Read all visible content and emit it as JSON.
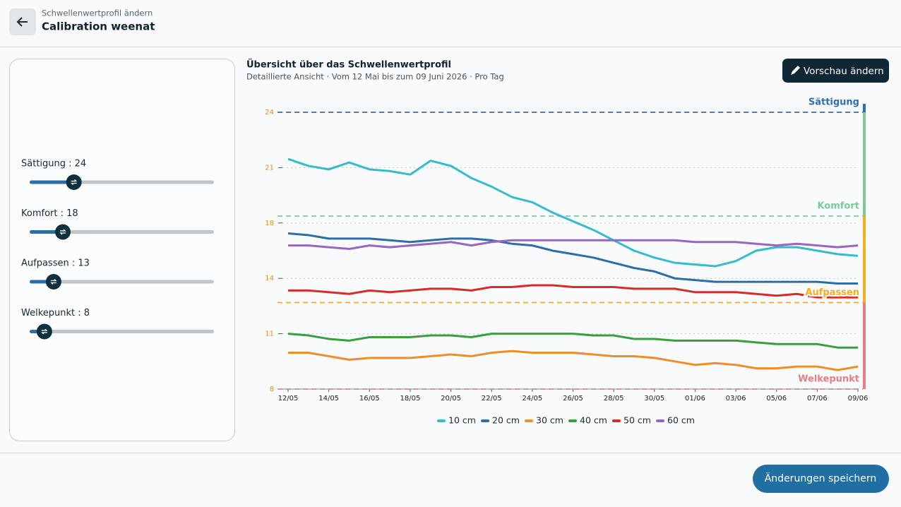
{
  "header": {
    "subtitle": "Schwellenwertprofil ändern",
    "title": "Calibration weenat"
  },
  "sliders": {
    "range": [
      0,
      100
    ],
    "items": [
      {
        "label": "Sättigung : 24",
        "value": 24
      },
      {
        "label": "Komfort : 18",
        "value": 18
      },
      {
        "label": "Aufpassen : 13",
        "value": 13
      },
      {
        "label": "Welkepunkt : 8",
        "value": 8
      }
    ]
  },
  "chart_data": {
    "type": "line",
    "title": "Übersicht über das Schwellenwertprofil",
    "subtitle": "Detaillierte Ansicht · Vom 12 Mai bis zum 09 Juni 2026 · Pro Tag",
    "edit_button": "Vorschau ändern",
    "x": [
      "12/05",
      null,
      "14/05",
      null,
      "16/05",
      null,
      "18/05",
      null,
      "20/05",
      null,
      "22/05",
      null,
      "24/05",
      null,
      "26/05",
      null,
      "28/05",
      null,
      "30/05",
      null,
      "01/06",
      null,
      "03/06",
      null,
      "05/06",
      null,
      "07/06",
      null,
      "09/06"
    ],
    "ylim": [
      8,
      24
    ],
    "yticks": [
      8,
      {
        "value": 11.2,
        "label": "11"
      },
      {
        "value": 14.4,
        "label": "14"
      },
      {
        "value": 17.6,
        "label": "18"
      },
      {
        "value": 20.8,
        "label": "21"
      },
      24
    ],
    "grid": true,
    "legend": "bottom",
    "thresholds": [
      {
        "name": "Sättigung",
        "value": 24,
        "color": "#2e6fb0"
      },
      {
        "name": "Komfort",
        "value": 18,
        "color": "#7cc99a"
      },
      {
        "name": "Aufpassen",
        "value": 13,
        "color": "#f2b01e"
      },
      {
        "name": "Welkepunkt",
        "value": 8,
        "color": "#e57f86"
      }
    ],
    "series": [
      {
        "name": "10 cm",
        "color": "#35bccb",
        "values": [
          21.3,
          20.9,
          20.7,
          21.1,
          20.7,
          20.6,
          20.4,
          21.2,
          20.9,
          20.2,
          19.7,
          19.1,
          18.8,
          18.2,
          17.7,
          17.2,
          16.6,
          16.0,
          15.6,
          15.3,
          15.2,
          15.1,
          15.4,
          16.0,
          16.2,
          16.2,
          16.0,
          15.8,
          15.7
        ]
      },
      {
        "name": "20 cm",
        "color": "#2b6ea8",
        "values": [
          17.0,
          16.9,
          16.7,
          16.7,
          16.7,
          16.6,
          16.5,
          16.6,
          16.7,
          16.7,
          16.6,
          16.4,
          16.3,
          16.0,
          15.8,
          15.6,
          15.3,
          15.0,
          14.8,
          14.4,
          14.3,
          14.2,
          14.2,
          14.2,
          14.2,
          14.2,
          14.2,
          14.1,
          14.1
        ]
      },
      {
        "name": "30 cm",
        "color": "#f28c28",
        "values": [
          10.1,
          10.1,
          9.9,
          9.7,
          9.8,
          9.8,
          9.8,
          9.9,
          10.0,
          9.9,
          10.1,
          10.2,
          10.1,
          10.1,
          10.1,
          10.0,
          9.9,
          9.9,
          9.8,
          9.6,
          9.4,
          9.5,
          9.4,
          9.2,
          9.2,
          9.3,
          9.3,
          9.1,
          9.3
        ]
      },
      {
        "name": "40 cm",
        "color": "#37a03a",
        "values": [
          11.2,
          11.1,
          10.9,
          10.8,
          11.0,
          11.0,
          11.0,
          11.1,
          11.1,
          11.0,
          11.2,
          11.2,
          11.2,
          11.2,
          11.2,
          11.1,
          11.1,
          10.9,
          10.9,
          10.8,
          10.8,
          10.8,
          10.8,
          10.7,
          10.6,
          10.6,
          10.6,
          10.4,
          10.4
        ]
      },
      {
        "name": "50 cm",
        "color": "#d62c2c",
        "values": [
          13.7,
          13.7,
          13.6,
          13.5,
          13.7,
          13.6,
          13.7,
          13.8,
          13.8,
          13.7,
          13.9,
          13.9,
          14.0,
          14.0,
          13.9,
          13.9,
          13.9,
          13.8,
          13.8,
          13.8,
          13.6,
          13.6,
          13.6,
          13.5,
          13.4,
          13.5,
          13.3,
          13.3,
          13.3
        ]
      },
      {
        "name": "60 cm",
        "color": "#9b64c3",
        "values": [
          16.3,
          16.3,
          16.2,
          16.1,
          16.3,
          16.2,
          16.3,
          16.4,
          16.5,
          16.3,
          16.5,
          16.6,
          16.6,
          16.6,
          16.6,
          16.6,
          16.6,
          16.6,
          16.6,
          16.6,
          16.5,
          16.5,
          16.5,
          16.4,
          16.3,
          16.4,
          16.3,
          16.2,
          16.3
        ]
      }
    ]
  },
  "footer": {
    "save_button": "Änderungen speichern"
  }
}
